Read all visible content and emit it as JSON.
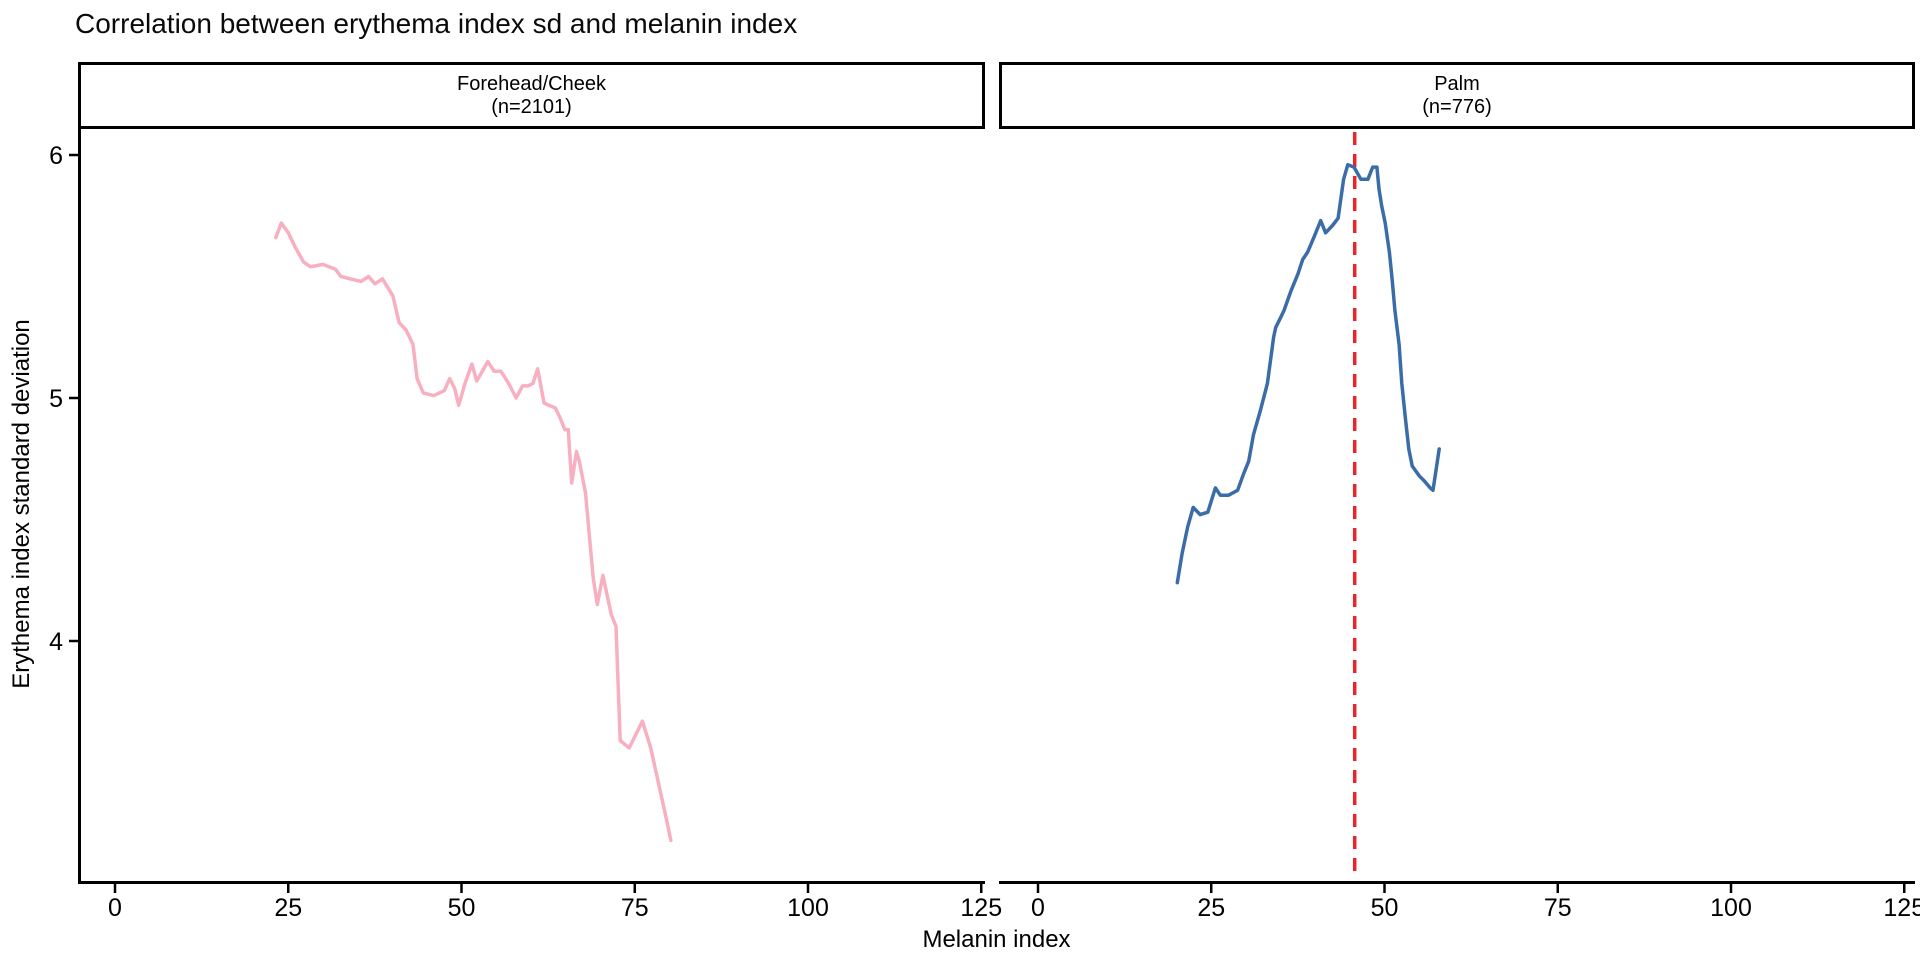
{
  "title": "Correlation between erythema index sd and melanin index",
  "chart_data": {
    "type": "line",
    "title": "Correlation between erythema index sd and melanin index",
    "xlabel": "Melanin index",
    "ylabel": "Erythema index standard deviation",
    "x_ticks": [
      0,
      25,
      50,
      75,
      100,
      125
    ],
    "y_ticks": [
      4,
      5,
      6
    ],
    "xlim": [
      -5,
      126
    ],
    "ylim": [
      3.0,
      6.1
    ],
    "grid": false,
    "legend": "none",
    "axis_color": "#000000",
    "background_color": "#ffffff",
    "facets": [
      {
        "label": "Forehead/Cheek",
        "sublabel": "(n=2101)",
        "series_name": "Forehead/Cheek",
        "color": "#F8AFC0",
        "x": [
          23.2,
          24.0,
          25.0,
          26.0,
          27.2,
          28.2,
          30.0,
          31.8,
          32.6,
          34.0,
          35.5,
          36.6,
          37.5,
          38.6,
          40.1,
          41.0,
          42.0,
          43.0,
          43.6,
          44.5,
          46.0,
          47.5,
          48.3,
          49.0,
          49.6,
          50.5,
          51.5,
          52.2,
          52.8,
          53.8,
          54.7,
          55.7,
          56.8,
          57.9,
          58.8,
          59.6,
          60.3,
          61.0,
          61.9,
          62.6,
          63.5,
          64.2,
          64.9,
          65.4,
          65.9,
          66.6,
          67.0,
          67.9,
          68.4,
          69.0,
          69.6,
          70.4,
          71.6,
          72.3,
          72.9,
          74.2,
          76.1,
          77.3,
          78.7,
          79.7,
          80.2
        ],
        "y": [
          5.66,
          5.72,
          5.68,
          5.62,
          5.56,
          5.54,
          5.55,
          5.53,
          5.5,
          5.49,
          5.48,
          5.5,
          5.47,
          5.49,
          5.42,
          5.31,
          5.28,
          5.22,
          5.08,
          5.02,
          5.01,
          5.03,
          5.08,
          5.04,
          4.97,
          5.06,
          5.14,
          5.07,
          5.1,
          5.15,
          5.11,
          5.11,
          5.06,
          5.0,
          5.05,
          5.05,
          5.06,
          5.12,
          4.98,
          4.97,
          4.96,
          4.92,
          4.87,
          4.87,
          4.65,
          4.78,
          4.74,
          4.61,
          4.45,
          4.26,
          4.15,
          4.27,
          4.11,
          4.06,
          3.59,
          3.56,
          3.67,
          3.56,
          3.38,
          3.25,
          3.18
        ]
      },
      {
        "label": "Palm",
        "sublabel": "(n=776)",
        "series_name": "Palm",
        "color": "#3A6CA8",
        "x": [
          20.1,
          20.8,
          21.6,
          22.4,
          23.4,
          24.5,
          25.6,
          26.3,
          27.5,
          28.8,
          29.7,
          30.4,
          31.1,
          32.1,
          33.1,
          34.0,
          34.3,
          35.0,
          35.5,
          36.5,
          37.5,
          38.2,
          38.9,
          39.8,
          40.8,
          41.5,
          42.5,
          43.3,
          44.1,
          44.7,
          45.6,
          46.6,
          47.6,
          48.3,
          48.9,
          49.2,
          49.6,
          50.1,
          50.7,
          51.1,
          51.5,
          52.1,
          52.5,
          53.0,
          53.5,
          54.0,
          55.0,
          55.7,
          56.6,
          57.0,
          57.9
        ],
        "y": [
          4.24,
          4.36,
          4.47,
          4.55,
          4.52,
          4.53,
          4.63,
          4.6,
          4.6,
          4.62,
          4.69,
          4.74,
          4.85,
          4.95,
          5.06,
          5.25,
          5.29,
          5.33,
          5.36,
          5.44,
          5.51,
          5.57,
          5.6,
          5.66,
          5.73,
          5.68,
          5.71,
          5.74,
          5.9,
          5.96,
          5.95,
          5.9,
          5.9,
          5.95,
          5.95,
          5.86,
          5.79,
          5.72,
          5.6,
          5.49,
          5.36,
          5.22,
          5.06,
          4.92,
          4.79,
          4.72,
          4.68,
          4.66,
          4.63,
          4.62,
          4.79
        ],
        "vline": {
          "x": 45.7,
          "color": "#E9252C",
          "style": "dashed"
        }
      }
    ]
  }
}
